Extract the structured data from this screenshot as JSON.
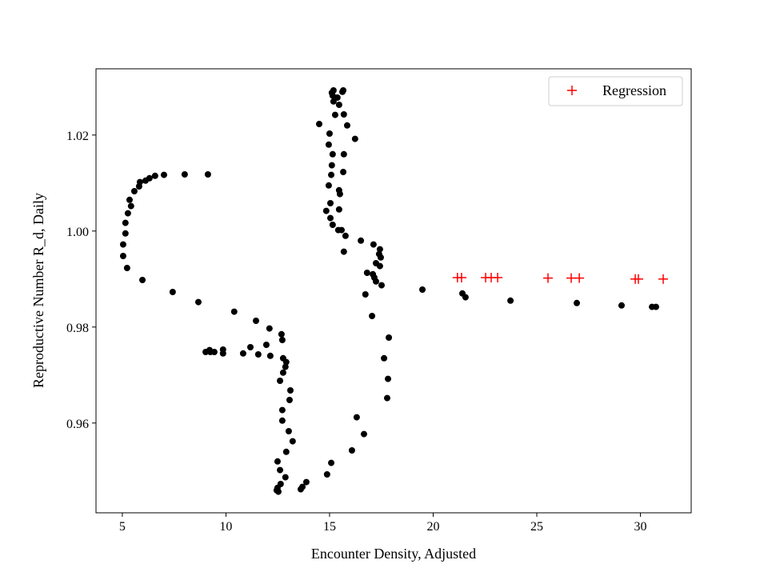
{
  "chart_data": {
    "type": "scatter",
    "title": "",
    "xlabel": "Encounter Density, Adjusted",
    "ylabel": "Reproductive Number R_d, Daily",
    "xlim": [
      3.73,
      32.45
    ],
    "ylim": [
      0.9413,
      1.0338
    ],
    "xticks": [
      5,
      10,
      15,
      20,
      25,
      30
    ],
    "xtick_labels": [
      "5",
      "10",
      "15",
      "20",
      "25",
      "30"
    ],
    "yticks": [
      0.96,
      0.98,
      1.0,
      1.02
    ],
    "ytick_labels": [
      "0.96",
      "0.98",
      "1.00",
      "1.02"
    ],
    "grid": false,
    "legend": {
      "placement": "top-right",
      "entries": [
        "Regression"
      ]
    },
    "series": [
      {
        "name": "data",
        "marker": "circle",
        "color": "#000000",
        "points": [
          [
            9.13,
            1.0118
          ],
          [
            8.01,
            1.0118
          ],
          [
            7.01,
            1.0117
          ],
          [
            6.58,
            1.0115
          ],
          [
            6.31,
            1.011
          ],
          [
            6.12,
            1.0105
          ],
          [
            5.85,
            1.0102
          ],
          [
            5.81,
            1.0093
          ],
          [
            5.58,
            1.0083
          ],
          [
            5.35,
            1.0065
          ],
          [
            5.42,
            1.0052
          ],
          [
            5.27,
            1.0037
          ],
          [
            5.15,
            1.0017
          ],
          [
            5.15,
            0.9995
          ],
          [
            5.04,
            0.9972
          ],
          [
            5.04,
            0.9948
          ],
          [
            5.23,
            0.9923
          ],
          [
            5.97,
            0.9898
          ],
          [
            7.43,
            0.9873
          ],
          [
            8.67,
            0.9852
          ],
          [
            10.4,
            0.9832
          ],
          [
            11.45,
            0.9813
          ],
          [
            12.1,
            0.9797
          ],
          [
            12.68,
            0.9785
          ],
          [
            12.72,
            0.9773
          ],
          [
            11.95,
            0.9763
          ],
          [
            11.18,
            0.9758
          ],
          [
            11.56,
            0.9743
          ],
          [
            12.14,
            0.974
          ],
          [
            10.83,
            0.9745
          ],
          [
            9.86,
            0.9753
          ],
          [
            9.86,
            0.9745
          ],
          [
            9.44,
            0.9748
          ],
          [
            9.25,
            0.9748
          ],
          [
            9.02,
            0.9748
          ],
          [
            9.21,
            0.9752
          ],
          [
            12.76,
            0.9735
          ],
          [
            12.91,
            0.9727
          ],
          [
            12.87,
            0.9717
          ],
          [
            12.76,
            0.9705
          ],
          [
            12.61,
            0.9688
          ],
          [
            13.11,
            0.9668
          ],
          [
            13.07,
            0.9648
          ],
          [
            12.72,
            0.9627
          ],
          [
            12.72,
            0.9605
          ],
          [
            13.03,
            0.9583
          ],
          [
            13.22,
            0.9562
          ],
          [
            12.91,
            0.954
          ],
          [
            12.49,
            0.952
          ],
          [
            12.61,
            0.9502
          ],
          [
            12.87,
            0.9487
          ],
          [
            12.64,
            0.9473
          ],
          [
            12.49,
            0.9465
          ],
          [
            12.45,
            0.946
          ],
          [
            12.53,
            0.9457
          ],
          [
            13.61,
            0.9462
          ],
          [
            13.69,
            0.9467
          ],
          [
            13.88,
            0.9477
          ],
          [
            14.88,
            0.9493
          ],
          [
            15.08,
            0.9517
          ],
          [
            16.08,
            0.9543
          ],
          [
            16.66,
            0.9577
          ],
          [
            16.31,
            0.9612
          ],
          [
            17.78,
            0.9652
          ],
          [
            17.82,
            0.9692
          ],
          [
            17.63,
            0.9735
          ],
          [
            17.86,
            0.9778
          ],
          [
            17.05,
            0.9823
          ],
          [
            16.73,
            0.9868
          ],
          [
            17.51,
            0.9887
          ],
          [
            17.24,
            0.9895
          ],
          [
            17.16,
            0.9903
          ],
          [
            17.09,
            0.991
          ],
          [
            16.81,
            0.9913
          ],
          [
            17.43,
            0.9927
          ],
          [
            17.24,
            0.9933
          ],
          [
            17.47,
            0.9945
          ],
          [
            17.39,
            0.9952
          ],
          [
            17.43,
            0.9962
          ],
          [
            17.12,
            0.9972
          ],
          [
            16.51,
            0.998
          ],
          [
            15.77,
            0.999
          ],
          [
            15.69,
            0.9957
          ],
          [
            15.58,
            1.0002
          ],
          [
            15.42,
            1.0002
          ],
          [
            15.15,
            1.0013
          ],
          [
            15.04,
            1.0027
          ],
          [
            14.84,
            1.0042
          ],
          [
            15.46,
            1.0045
          ],
          [
            15.04,
            1.0058
          ],
          [
            15.5,
            1.0077
          ],
          [
            15.46,
            1.0085
          ],
          [
            14.96,
            1.0095
          ],
          [
            15.66,
            1.0123
          ],
          [
            15.08,
            1.0117
          ],
          [
            15.11,
            1.0137
          ],
          [
            15.15,
            1.016
          ],
          [
            15.69,
            1.016
          ],
          [
            16.23,
            1.0192
          ],
          [
            14.96,
            1.018
          ],
          [
            15.0,
            1.0203
          ],
          [
            15.85,
            1.022
          ],
          [
            14.5,
            1.0223
          ],
          [
            15.27,
            1.0242
          ],
          [
            15.69,
            1.0243
          ],
          [
            15.46,
            1.0263
          ],
          [
            15.19,
            1.027
          ],
          [
            15.38,
            1.0278
          ],
          [
            15.15,
            1.0282
          ],
          [
            15.11,
            1.0288
          ],
          [
            15.19,
            1.0293
          ],
          [
            15.62,
            1.029
          ],
          [
            15.66,
            1.0293
          ],
          [
            19.48,
            0.9878
          ],
          [
            21.41,
            0.987
          ],
          [
            21.56,
            0.9862
          ],
          [
            23.73,
            0.9855
          ],
          [
            26.93,
            0.985
          ],
          [
            29.09,
            0.9845
          ],
          [
            30.56,
            0.9842
          ],
          [
            30.75,
            0.9842
          ]
        ]
      },
      {
        "name": "Regression",
        "marker": "plus",
        "color": "#ff0000",
        "points": [
          [
            21.17,
            0.9903
          ],
          [
            21.37,
            0.9903
          ],
          [
            22.53,
            0.9903
          ],
          [
            22.8,
            0.9903
          ],
          [
            23.11,
            0.9903
          ],
          [
            25.54,
            0.9902
          ],
          [
            26.66,
            0.9902
          ],
          [
            27.05,
            0.9902
          ],
          [
            29.75,
            0.99
          ],
          [
            29.9,
            0.99
          ],
          [
            31.1,
            0.99
          ]
        ]
      }
    ]
  }
}
